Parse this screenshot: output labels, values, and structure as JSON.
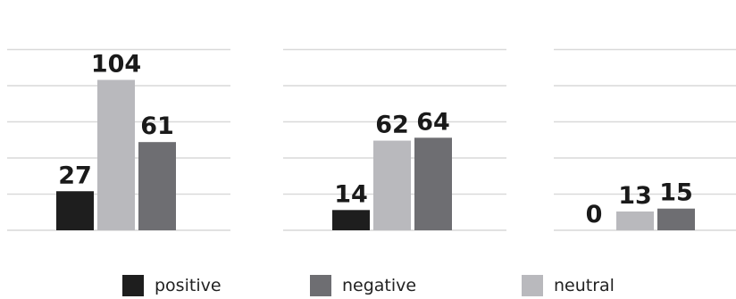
{
  "chart_data": {
    "type": "bar",
    "title": "",
    "xlabel": "",
    "ylabel": "",
    "ylim": [
      0,
      125
    ],
    "grid": true,
    "legend_position": "bottom",
    "series": [
      {
        "name": "positive",
        "color": "#1e1e1e"
      },
      {
        "name": "neutral",
        "color": "#b9b9bd"
      },
      {
        "name": "negative",
        "color": "#6e6e72"
      }
    ],
    "groups": [
      {
        "values": [
          27,
          104,
          61
        ]
      },
      {
        "values": [
          14,
          62,
          64
        ]
      },
      {
        "values": [
          0,
          13,
          15
        ]
      }
    ]
  },
  "legend": [
    {
      "label": "positive",
      "color": "#1e1e1e"
    },
    {
      "label": "negative",
      "color": "#6e6e72"
    },
    {
      "label": "neutral",
      "color": "#b9b9bd"
    }
  ]
}
